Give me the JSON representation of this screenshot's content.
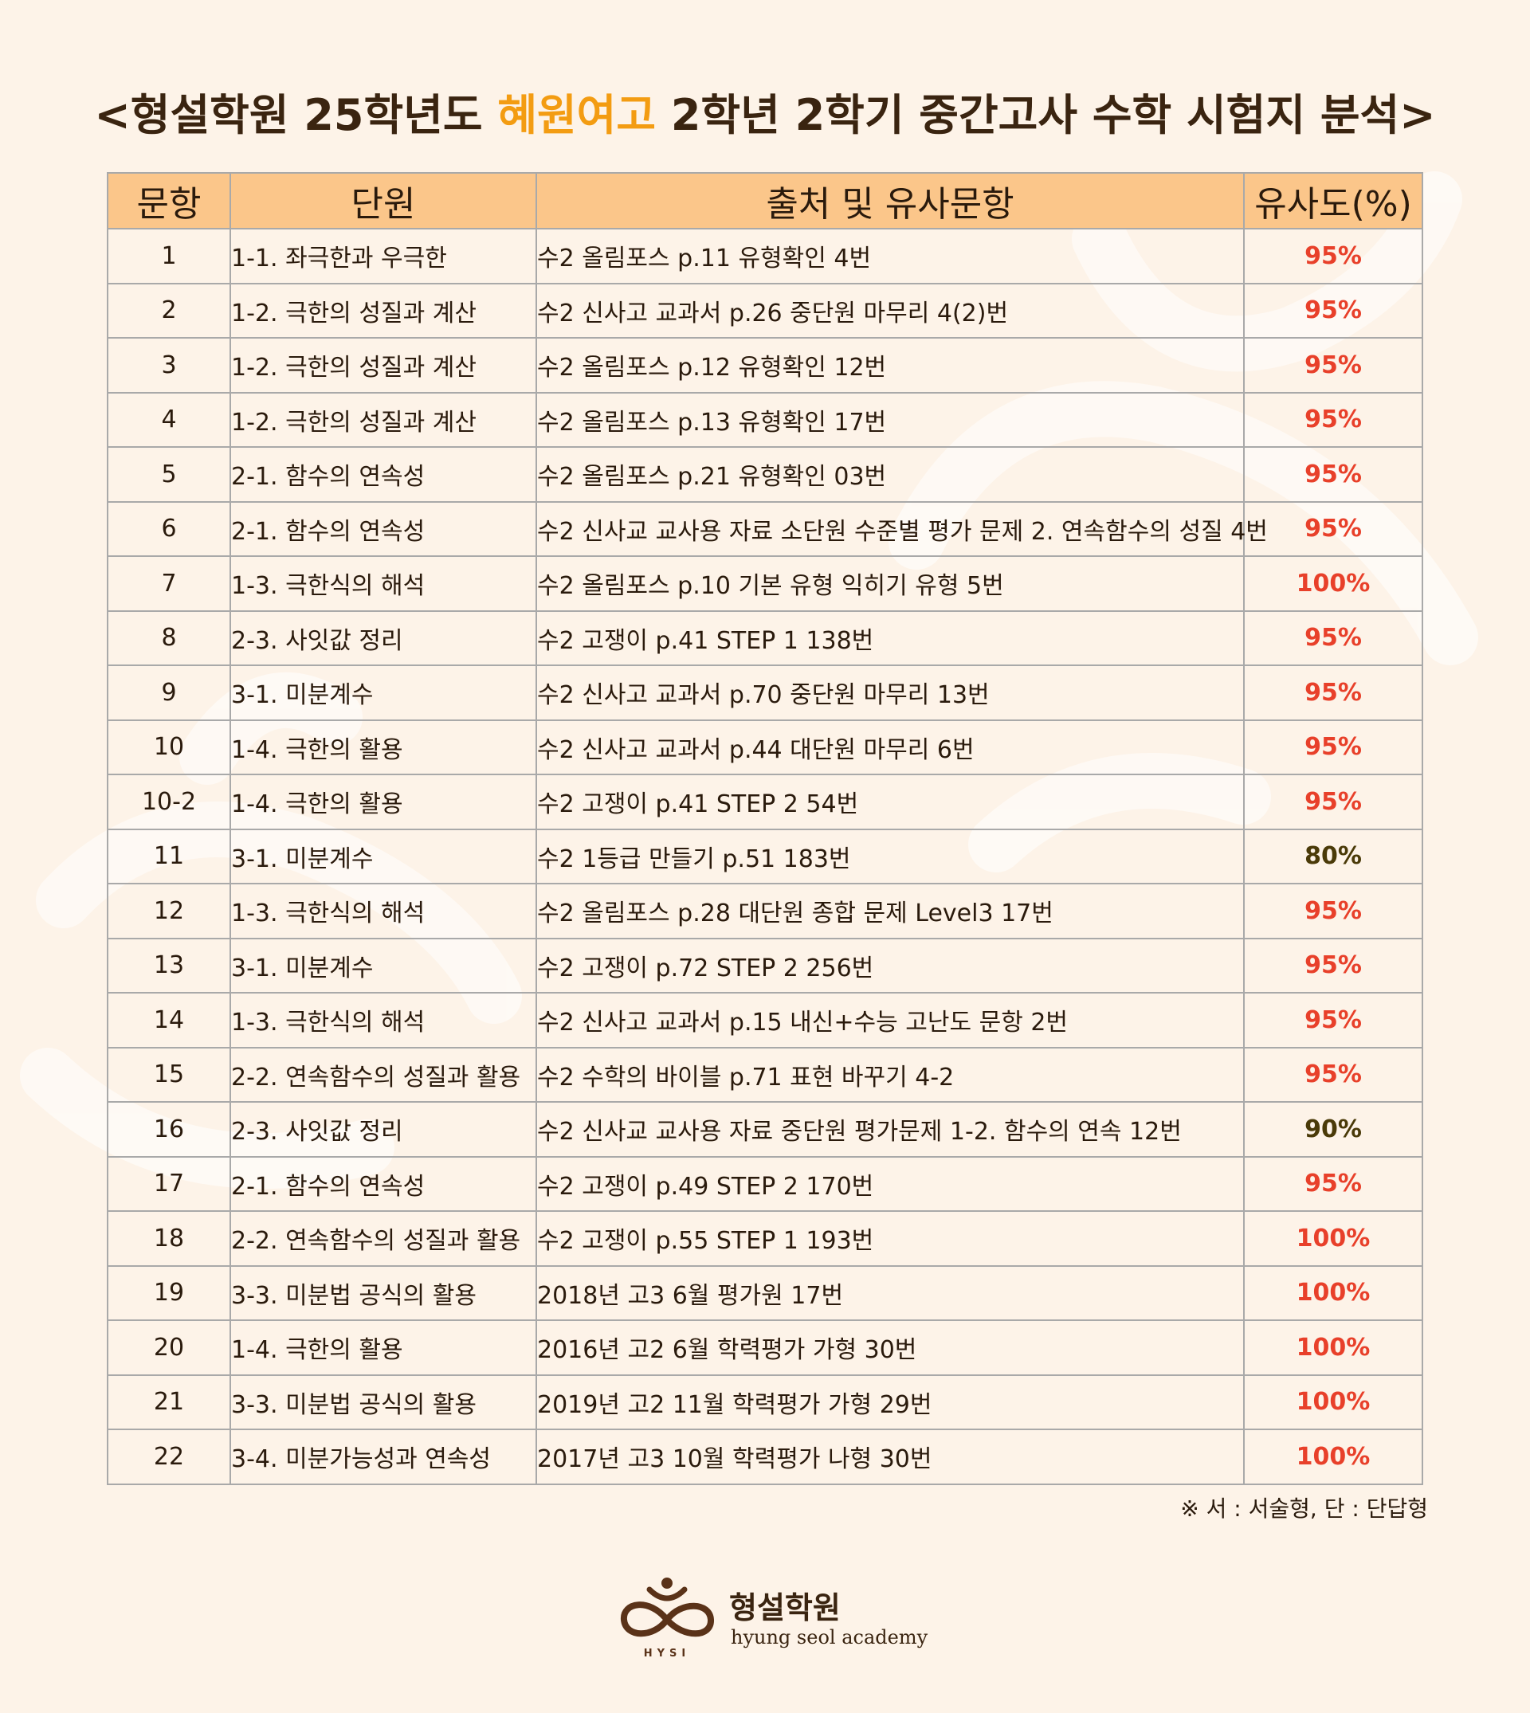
{
  "title": {
    "before": "<형설학원 25학년도 ",
    "highlight": "혜원여고",
    "after": " 2학년 2학기 중간고사 수학 시험지 분석>"
  },
  "table": {
    "headers": [
      "문항",
      "단원",
      "출처 및 유사문항",
      "유사도(%)"
    ],
    "rows": [
      {
        "num": "1",
        "unit": "1-1. 좌극한과 우극한",
        "source": "수2 올림포스 p.11 유형확인 4번",
        "sim": "95%"
      },
      {
        "num": "2",
        "unit": "1-2. 극한의 성질과 계산",
        "source": "수2 신사고 교과서 p.26 중단원 마무리 4(2)번",
        "sim": "95%"
      },
      {
        "num": "3",
        "unit": "1-2. 극한의 성질과 계산",
        "source": "수2 올림포스 p.12 유형확인 12번",
        "sim": "95%"
      },
      {
        "num": "4",
        "unit": "1-2. 극한의 성질과 계산",
        "source": "수2 올림포스 p.13 유형확인 17번",
        "sim": "95%"
      },
      {
        "num": "5",
        "unit": "2-1. 함수의 연속성",
        "source": "수2 올림포스 p.21 유형확인 03번",
        "sim": "95%"
      },
      {
        "num": "6",
        "unit": "2-1. 함수의 연속성",
        "source": "수2 신사교 교사용 자료 소단원 수준별 평가 문제 2. 연속함수의 성질 4번",
        "sim": "95%"
      },
      {
        "num": "7",
        "unit": "1-3. 극한식의 해석",
        "source": "수2 올림포스 p.10 기본 유형 익히기 유형 5번",
        "sim": "100%"
      },
      {
        "num": "8",
        "unit": "2-3. 사잇값 정리",
        "source": "수2 고쟁이 p.41 STEP 1 138번",
        "sim": "95%"
      },
      {
        "num": "9",
        "unit": "3-1. 미분계수",
        "source": "수2 신사고 교과서 p.70 중단원 마무리 13번",
        "sim": "95%"
      },
      {
        "num": "10",
        "unit": "1-4. 극한의 활용",
        "source": "수2 신사고 교과서 p.44 대단원 마무리 6번",
        "sim": "95%"
      },
      {
        "num": "10-2",
        "unit": "1-4. 극한의 활용",
        "source": "수2 고쟁이 p.41 STEP 2 54번",
        "sim": "95%"
      },
      {
        "num": "11",
        "unit": "3-1. 미분계수",
        "source": "수2 1등급 만들기 p.51 183번",
        "sim": "80%"
      },
      {
        "num": "12",
        "unit": "1-3. 극한식의 해석",
        "source": "수2 올림포스 p.28 대단원 종합 문제 Level3 17번",
        "sim": "95%"
      },
      {
        "num": "13",
        "unit": "3-1. 미분계수",
        "source": "수2 고쟁이 p.72 STEP 2 256번",
        "sim": "95%"
      },
      {
        "num": "14",
        "unit": "1-3. 극한식의 해석",
        "source": "수2 신사고 교과서 p.15 내신+수능 고난도 문항 2번",
        "sim": "95%"
      },
      {
        "num": "15",
        "unit": "2-2. 연속함수의 성질과 활용",
        "source": "수2 수학의 바이블 p.71 표현 바꾸기 4-2",
        "sim": "95%"
      },
      {
        "num": "16",
        "unit": "2-3. 사잇값 정리",
        "source": "수2 신사교 교사용 자료 중단원 평가문제 1-2. 함수의 연속 12번",
        "sim": "90%"
      },
      {
        "num": "17",
        "unit": "2-1. 함수의 연속성",
        "source": "수2 고쟁이 p.49 STEP 2 170번",
        "sim": "95%"
      },
      {
        "num": "18",
        "unit": "2-2. 연속함수의 성질과 활용",
        "source": "수2 고쟁이 p.55 STEP 1 193번",
        "sim": "100%"
      },
      {
        "num": "19",
        "unit": "3-3. 미분법 공식의 활용",
        "source": "2018년 고3 6월 평가원 17번",
        "sim": "100%"
      },
      {
        "num": "20",
        "unit": "1-4. 극한의 활용",
        "source": "2016년 고2 6월 학력평가 가형 30번",
        "sim": "100%"
      },
      {
        "num": "21",
        "unit": "3-3. 미분법 공식의 활용",
        "source": "2019년 고2 11월 학력평가 가형 29번",
        "sim": "100%"
      },
      {
        "num": "22",
        "unit": "3-4. 미분가능성과 연속성",
        "source": "2017년 고3 10월 학력평가 나형 30번",
        "sim": "100%"
      }
    ]
  },
  "note": "※ 서 : 서술형, 단 : 단답형",
  "logo": {
    "name_ko": "형설학원",
    "name_en": "hyung seol academy",
    "mark_text": "HYSI"
  },
  "colors": {
    "background": "#fdf3e8",
    "header_fill": "#fbc68a",
    "title_highlight": "#f39c12",
    "similarity_high": "#e8402a",
    "similarity_low": "#4a3a08",
    "brand_brown": "#5a3218"
  }
}
